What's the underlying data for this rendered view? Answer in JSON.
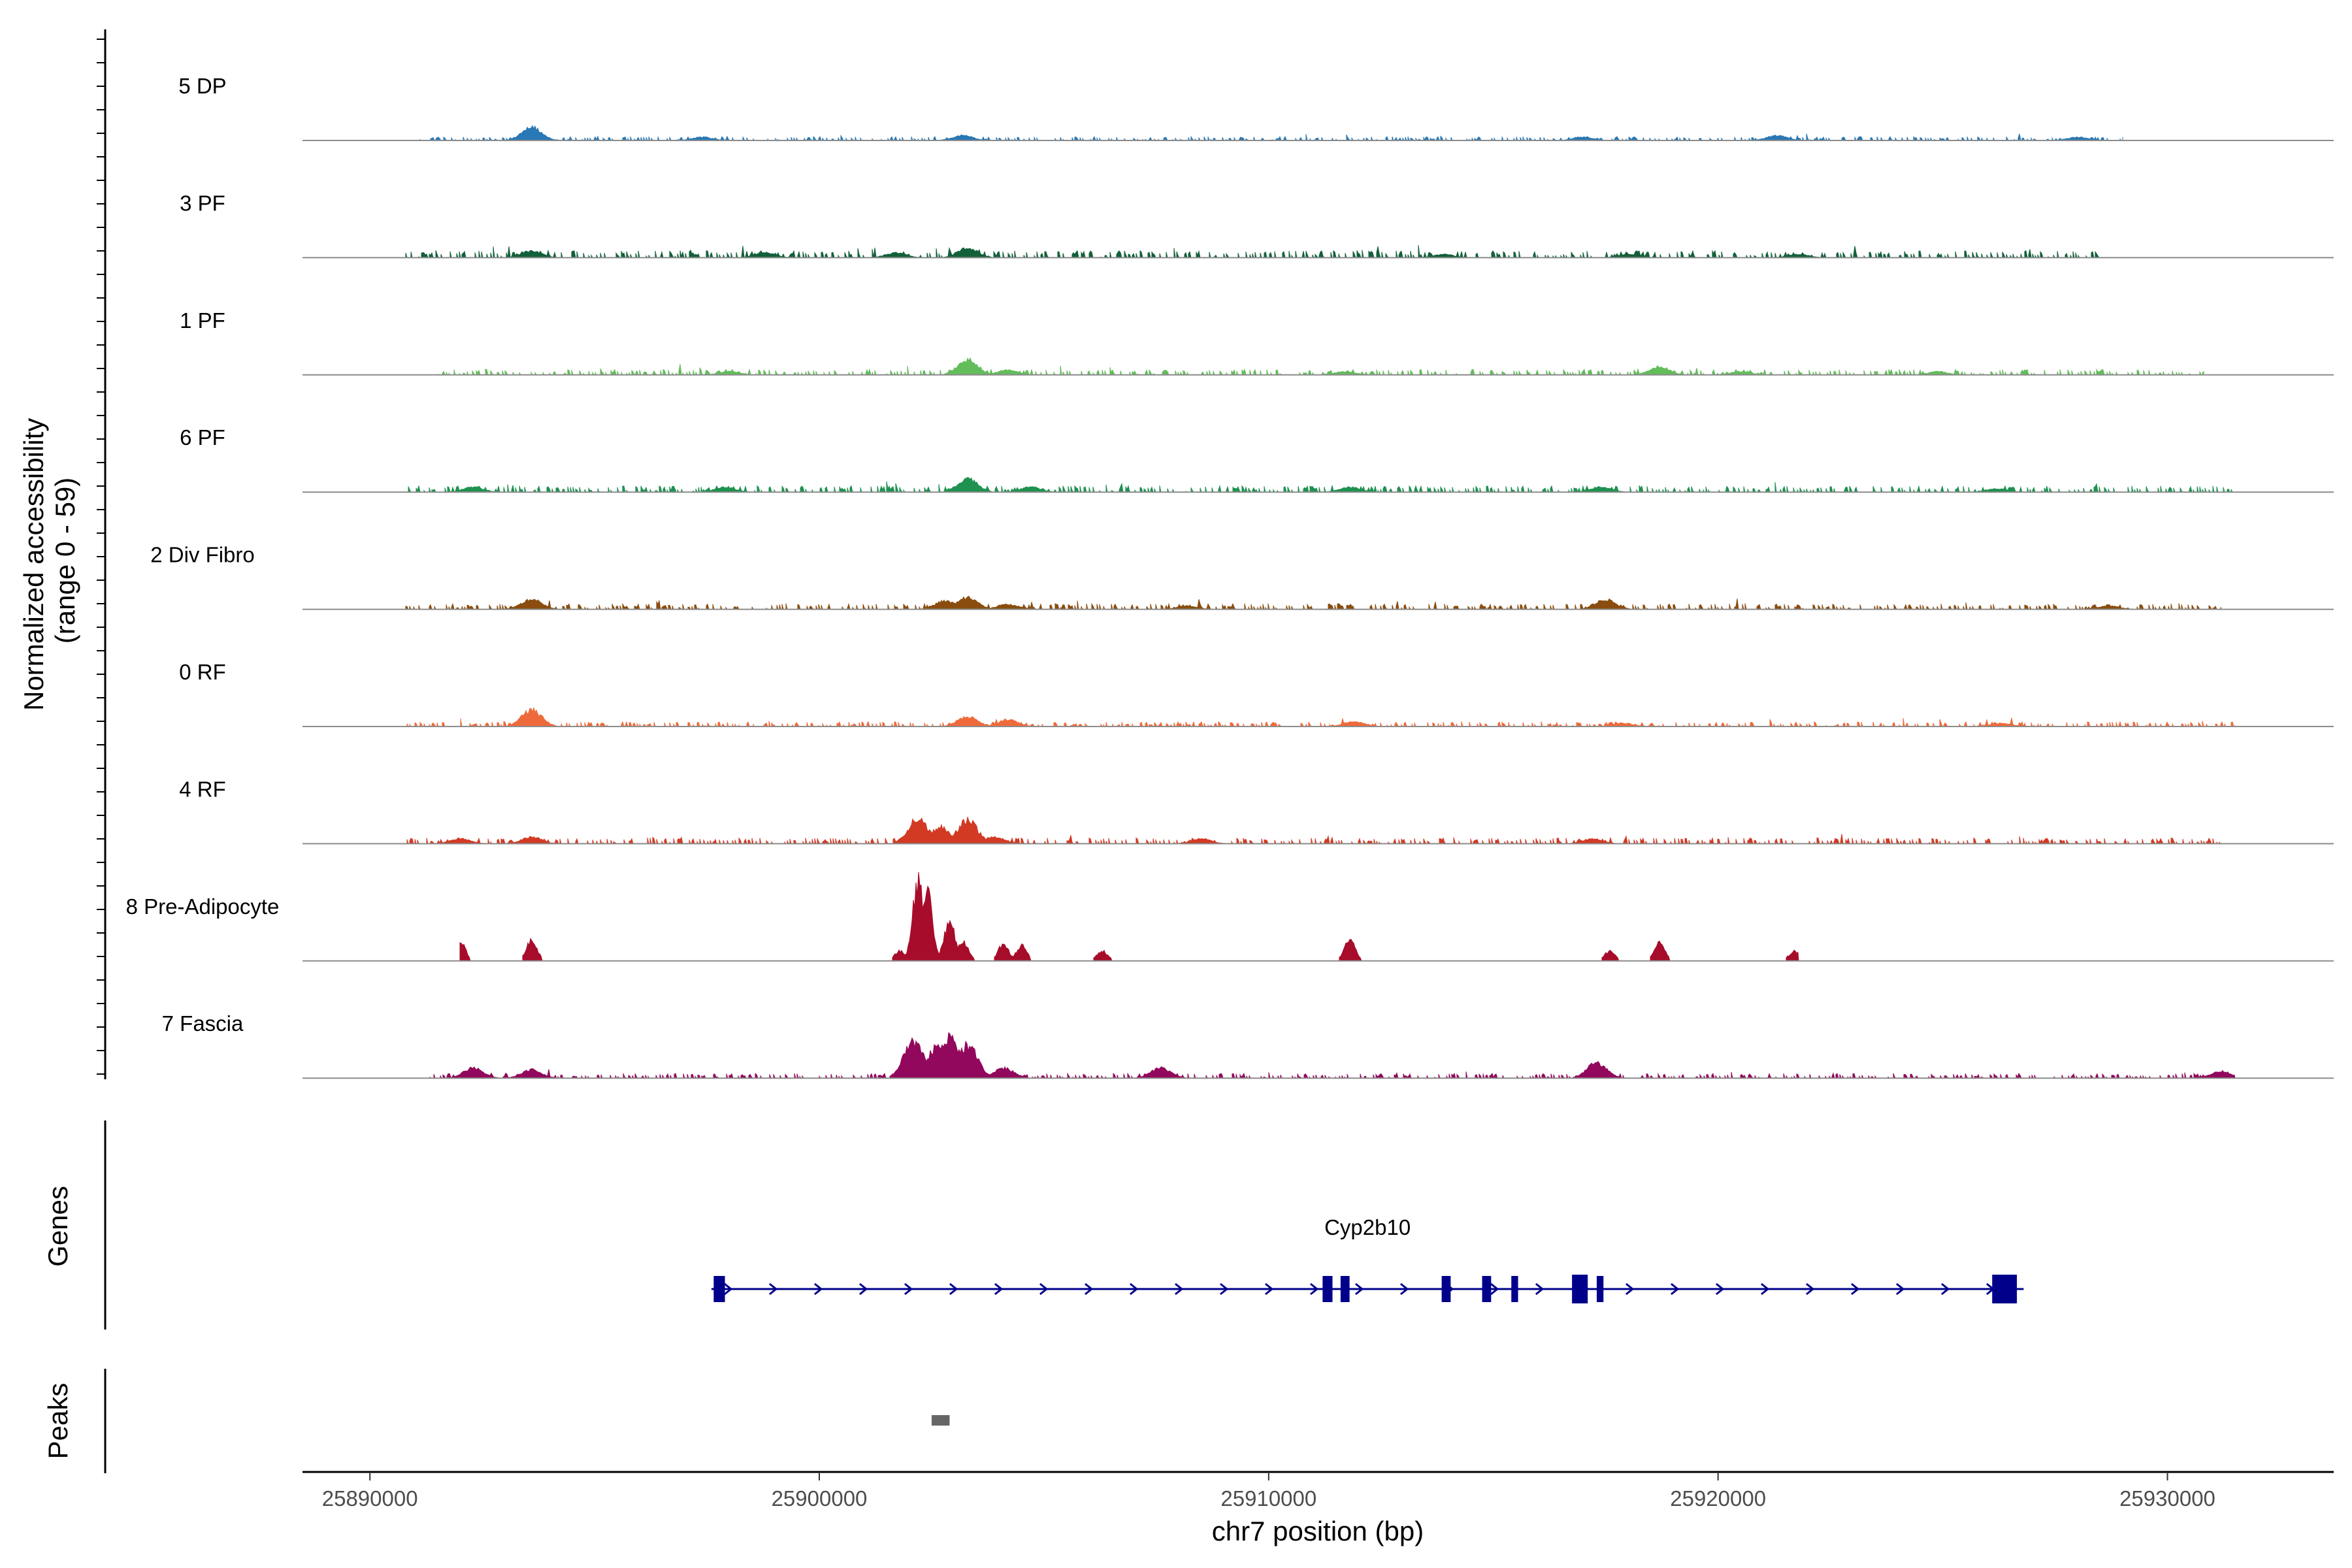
{
  "chart_data": {
    "type": "area",
    "title": "",
    "ylabel": "Normalized accessibility\n(range 0 - 59)",
    "ylabel_lines": [
      "Normalized accessibility",
      "(range 0 - 59)"
    ],
    "ylim": [
      0,
      59
    ],
    "xlabel": "chr7 position (bp)",
    "xlim": [
      25888500,
      25933700
    ],
    "x_ticks": [
      25890000,
      25900000,
      25910000,
      25920000,
      25930000
    ],
    "x_tick_labels": [
      "25890000",
      "25900000",
      "25910000",
      "25920000",
      "25930000"
    ],
    "grid": false,
    "series": [
      {
        "name": "5 DP",
        "color": "#2878b5",
        "base": 1.0,
        "extent": [
          25891000,
          25929000
        ],
        "peaks": [
          [
            25893600,
            8
          ],
          [
            25903200,
            3
          ],
          [
            25897400,
            2
          ],
          [
            25917000,
            2
          ],
          [
            25921300,
            3
          ],
          [
            25928000,
            2
          ]
        ]
      },
      {
        "name": "3 PF",
        "color": "#12603a",
        "base": 1.8,
        "extent": [
          25890800,
          25928500
        ],
        "peaks": [
          [
            25893600,
            4
          ],
          [
            25903300,
            6
          ],
          [
            25898800,
            3
          ],
          [
            25901700,
            3
          ],
          [
            25913900,
            2
          ],
          [
            25921800,
            2
          ],
          [
            25918000,
            2
          ]
        ]
      },
      {
        "name": "1 PF",
        "color": "#62bd5a",
        "base": 1.4,
        "extent": [
          25891500,
          25930800
        ],
        "peaks": [
          [
            25903300,
            9
          ],
          [
            25904200,
            3
          ],
          [
            25918700,
            5
          ],
          [
            25898000,
            2
          ],
          [
            25911700,
            2
          ],
          [
            25920500,
            2
          ],
          [
            25924900,
            2
          ]
        ]
      },
      {
        "name": "6 PF",
        "color": "#1f9150",
        "base": 1.6,
        "extent": [
          25890800,
          25931500
        ],
        "peaks": [
          [
            25903300,
            8
          ],
          [
            25904700,
            3
          ],
          [
            25897900,
            3
          ],
          [
            25892300,
            3
          ],
          [
            25911800,
            3
          ],
          [
            25917400,
            3
          ],
          [
            25926200,
            2
          ]
        ]
      },
      {
        "name": "2 Div Fibro",
        "color": "#8a4d0f",
        "base": 1.4,
        "extent": [
          25890800,
          25931200
        ],
        "peaks": [
          [
            25893600,
            6
          ],
          [
            25903300,
            7
          ],
          [
            25902800,
            5
          ],
          [
            25904200,
            3
          ],
          [
            25917500,
            6
          ],
          [
            25908200,
            2
          ],
          [
            25928700,
            2
          ]
        ]
      },
      {
        "name": "0 RF",
        "color": "#ef6a3a",
        "base": 1.2,
        "extent": [
          25890800,
          25931500
        ],
        "peaks": [
          [
            25893600,
            10
          ],
          [
            25903300,
            6
          ],
          [
            25904200,
            4
          ],
          [
            25911900,
            3
          ],
          [
            25917900,
            2
          ],
          [
            25926300,
            2
          ]
        ]
      },
      {
        "name": "4 RF",
        "color": "#d23a24",
        "base": 1.5,
        "extent": [
          25890800,
          25931200
        ],
        "peaks": [
          [
            25902200,
            15
          ],
          [
            25902700,
            10
          ],
          [
            25903300,
            14
          ],
          [
            25903900,
            4
          ],
          [
            25892000,
            3
          ],
          [
            25893600,
            4
          ],
          [
            25908500,
            3
          ],
          [
            25917200,
            3
          ]
        ]
      },
      {
        "name": "8 Pre-Adipocyte",
        "color": "#a70d2a",
        "base": 0,
        "extent": [
          25892000,
          25921800
        ],
        "peaks": [
          [
            25902200,
            48
          ],
          [
            25902400,
            42
          ],
          [
            25902900,
            25
          ],
          [
            25903200,
            12
          ],
          [
            25904100,
            10
          ],
          [
            25904500,
            9
          ],
          [
            25892000,
            12
          ],
          [
            25893600,
            12
          ],
          [
            25901800,
            6
          ],
          [
            25906300,
            6
          ],
          [
            25911800,
            13
          ],
          [
            25917600,
            6
          ],
          [
            25918700,
            12
          ],
          [
            25921700,
            6
          ]
        ]
      },
      {
        "name": "7 Fascia",
        "color": "#92085c",
        "base": 1.2,
        "extent": [
          25891300,
          25931500
        ],
        "peaks": [
          [
            25902100,
            22
          ],
          [
            25902600,
            18
          ],
          [
            25902900,
            24
          ],
          [
            25903300,
            20
          ],
          [
            25904100,
            6
          ],
          [
            25892300,
            6
          ],
          [
            25893600,
            5
          ],
          [
            25907600,
            6
          ],
          [
            25917300,
            9
          ],
          [
            25931200,
            4
          ]
        ]
      }
    ],
    "genes": {
      "title": "Genes",
      "label": "Cyp2b10",
      "color": "#00008b",
      "start": 25897600,
      "end": 25926800,
      "strand": "+",
      "exons": [
        [
          25897650,
          25897900
        ],
        [
          25911200,
          25911420
        ],
        [
          25911600,
          25911800
        ],
        [
          25913850,
          25914050
        ],
        [
          25914750,
          25914950
        ],
        [
          25915400,
          25915550
        ],
        [
          25916750,
          25917100
        ],
        [
          25917300,
          25917450
        ],
        [
          25926100,
          25926650
        ]
      ]
    },
    "peaks_track": {
      "title": "Peaks",
      "color": "#666666",
      "regions": [
        [
          25902500,
          25902900
        ]
      ]
    }
  }
}
